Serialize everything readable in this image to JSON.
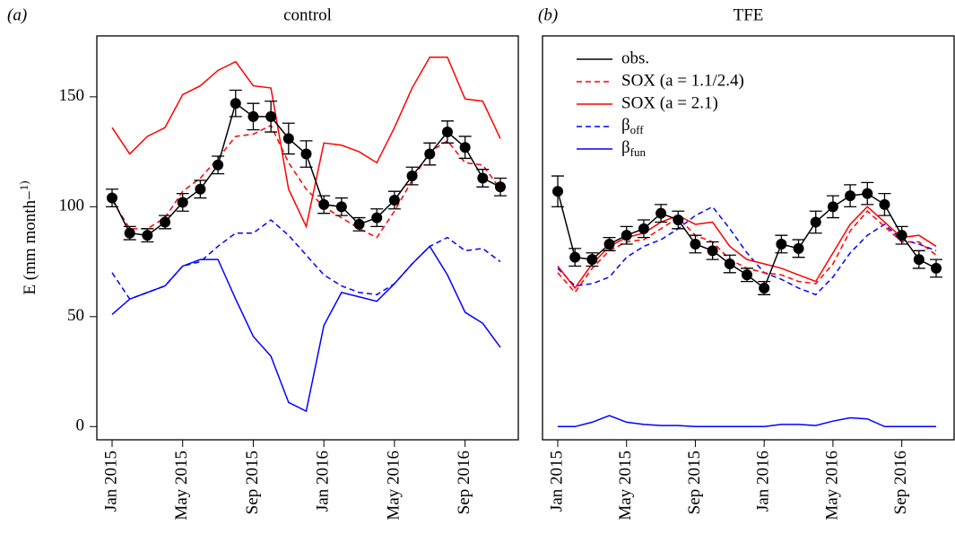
{
  "chart_data": [
    {
      "type": "line",
      "panel_label": "(a)",
      "title": "control",
      "y_label": "E (mm month−1)",
      "categories": [
        "Jan 2015",
        null,
        null,
        null,
        "May 2015",
        null,
        null,
        null,
        "Sep 2015",
        null,
        null,
        null,
        "Jan 2016",
        null,
        null,
        null,
        "May 2016",
        null,
        null,
        null,
        "Sep 2016",
        null,
        null
      ],
      "ylim": [
        -6,
        177.7
      ],
      "yticks": [
        0,
        50,
        100,
        150
      ],
      "series": [
        {
          "color": "#0000ff",
          "dash": false,
          "values": [
            51,
            58,
            61,
            64,
            73,
            76,
            76,
            58,
            41,
            32,
            11,
            7,
            46,
            61,
            59,
            57,
            65,
            74,
            82,
            69,
            52,
            47,
            36
          ]
        },
        {
          "color": "#0000ff",
          "dash": true,
          "values": [
            70,
            58,
            61,
            64,
            73,
            75,
            82,
            88,
            88,
            94,
            87,
            78,
            69,
            64,
            61,
            60,
            65,
            74,
            82,
            86,
            80,
            81,
            75
          ]
        },
        {
          "color": "#ff0000",
          "dash": false,
          "values": [
            136,
            124,
            132,
            136,
            151,
            155,
            162,
            166,
            155,
            154,
            108,
            91,
            129,
            128,
            125,
            120,
            136,
            154,
            168,
            168,
            149,
            148,
            131
          ]
        },
        {
          "color": "#ff0000",
          "dash": true,
          "values": [
            103,
            90,
            90,
            95,
            107,
            113,
            122,
            132,
            133,
            137,
            120,
            108,
            100,
            95,
            90,
            86,
            98,
            112,
            125,
            130,
            120,
            119,
            108
          ]
        },
        {
          "color": "#000000",
          "dash": false,
          "markers": true,
          "values": [
            104,
            88,
            87,
            93,
            102,
            108,
            119,
            147,
            141,
            141,
            131,
            124,
            101,
            100,
            92,
            95,
            103,
            114,
            124,
            134,
            127,
            113,
            109
          ],
          "errors": [
            4,
            3,
            3,
            3,
            4,
            4,
            4,
            6,
            6,
            7,
            7,
            6,
            4,
            4,
            3,
            4,
            4,
            4,
            5,
            5,
            5,
            4,
            4
          ]
        }
      ]
    },
    {
      "type": "line",
      "panel_label": "(b)",
      "title": "TFE",
      "categories": [
        "Jan 2015",
        null,
        null,
        null,
        "May 2015",
        null,
        null,
        null,
        "Sep 2015",
        null,
        null,
        null,
        "Jan 2016",
        null,
        null,
        null,
        "May 2016",
        null,
        null,
        null,
        "Sep 2016",
        null,
        null
      ],
      "ylim": [
        -6,
        177.7
      ],
      "legend": "top-left",
      "series": [
        {
          "name": "βfun",
          "color": "#0000ff",
          "dash": false,
          "values": [
            0,
            0,
            2,
            5,
            2,
            1,
            0.5,
            0.5,
            0,
            0,
            0,
            0,
            0,
            1,
            1,
            0.5,
            2.5,
            4,
            3.5,
            0,
            0,
            0,
            0
          ]
        },
        {
          "name": "βoff",
          "color": "#0000ff",
          "dash": true,
          "values": [
            72,
            64,
            65,
            68,
            77,
            82,
            85,
            90,
            96,
            100,
            90,
            79,
            70,
            67,
            63,
            60,
            68,
            79,
            87,
            92,
            85,
            83,
            80
          ]
        },
        {
          "name": "SOX (a = 2.1)",
          "color": "#ff0000",
          "dash": false,
          "values": [
            73,
            63,
            74,
            82,
            86,
            88,
            93,
            96,
            92,
            93,
            82,
            76,
            74,
            72,
            69,
            66,
            79,
            92,
            100,
            93,
            86,
            87,
            82
          ]
        },
        {
          "name": "SOX (a = 1.1/2.4)",
          "color": "#ff0000",
          "dash": true,
          "values": [
            70,
            61,
            72,
            80,
            84,
            85,
            90,
            95,
            87,
            84,
            76,
            72,
            70,
            69,
            66,
            65,
            74,
            89,
            98,
            91,
            84,
            84,
            78
          ]
        },
        {
          "name": "obs.",
          "color": "#000000",
          "dash": false,
          "markers": true,
          "values": [
            107,
            77,
            76,
            83,
            87,
            90,
            97,
            94,
            83,
            80,
            74,
            69,
            63,
            83,
            81,
            93,
            100,
            105,
            106,
            101,
            87,
            76,
            72
          ],
          "errors": [
            7,
            4,
            3,
            3,
            4,
            4,
            4,
            4,
            4,
            4,
            4,
            3,
            3,
            4,
            4,
            5,
            5,
            5,
            5,
            5,
            4,
            4,
            4
          ]
        }
      ]
    }
  ]
}
